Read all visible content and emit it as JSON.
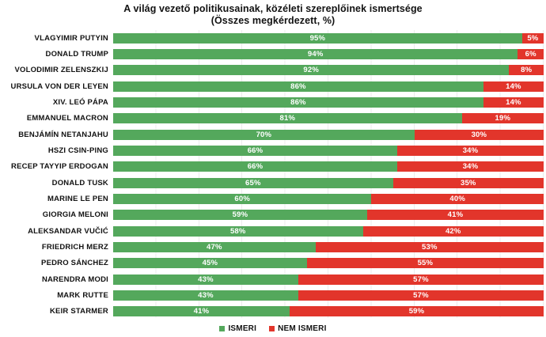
{
  "title": "A világ vezető politikusainak, közéleti szereplőinek ismertsége",
  "subtitle": "(Összes megkérdezett, %)",
  "colors": {
    "ismeri_green": "#54a85c",
    "nem_ismeri_red": "#e2352b",
    "gridline": "#ececec",
    "text": "#121212",
    "bar_label": "#ffffff"
  },
  "legend": [
    {
      "label": "ISMERI",
      "color": "#54a85c"
    },
    {
      "label": "NEM ISMERI",
      "color": "#e2352b"
    }
  ],
  "chart_data": {
    "type": "bar",
    "orientation": "horizontal",
    "stacked": true,
    "title": "A világ vezető politikusainak, közéleti szereplőinek ismertsége",
    "subtitle": "(Összes megkérdezett, %)",
    "categories": [
      "VLAGYIMIR PUTYIN",
      "DONALD TRUMP",
      "VOLODIMIR ZELENSZKIJ",
      "URSULA VON DER LEYEN",
      "XIV. LEÓ PÁPA",
      "EMMANUEL MACRON",
      "BENJÁMÍN NETANJAHU",
      "HSZI CSIN-PING",
      "RECEP TAYYIP ERDOGAN",
      "DONALD TUSK",
      "MARINE LE PEN",
      "GIORGIA MELONI",
      "ALEKSANDAR VUČIĆ",
      "FRIEDRICH MERZ",
      "PEDRO SÁNCHEZ",
      "NARENDRA MODI",
      "MARK RUTTE",
      "KEIR STARMER"
    ],
    "series": [
      {
        "name": "ISMERI",
        "color": "#54a85c",
        "values": [
          95,
          94,
          92,
          86,
          86,
          81,
          70,
          66,
          66,
          65,
          60,
          59,
          58,
          47,
          45,
          43,
          43,
          41
        ]
      },
      {
        "name": "NEM ISMERI",
        "color": "#e2352b",
        "values": [
          5,
          6,
          8,
          14,
          14,
          19,
          30,
          34,
          34,
          35,
          40,
          41,
          42,
          53,
          55,
          57,
          57,
          59
        ]
      }
    ],
    "value_suffix": "%",
    "xlim": [
      0,
      100
    ],
    "grid": "vertical gridlines every 10%",
    "value_labels": "centered inside each segment, white bold",
    "legend_position": "bottom-center"
  }
}
